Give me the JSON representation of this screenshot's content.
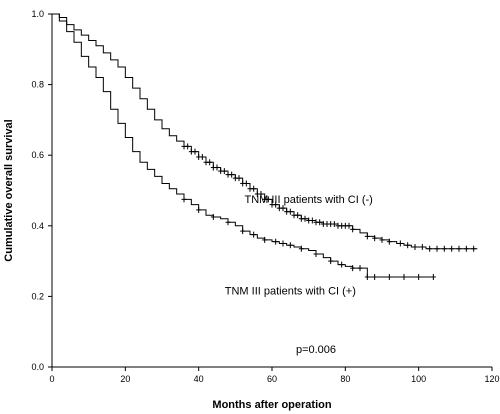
{
  "chart_data": {
    "type": "line",
    "xlabel": "Months after operation",
    "ylabel": "Cumulative overall survival",
    "xlim": [
      0,
      120
    ],
    "ylim": [
      0,
      1.0
    ],
    "xticks": [
      0,
      20,
      40,
      60,
      80,
      100,
      120
    ],
    "yticks": [
      0.0,
      0.2,
      0.4,
      0.6,
      0.8,
      1.0
    ],
    "ytick_labels": [
      "0.0",
      "0.2",
      "0.4",
      "0.6",
      "0.8",
      "1.0"
    ],
    "grid": false,
    "step": true,
    "series": [
      {
        "name": "TNM III patients with CI (-)",
        "x": [
          0,
          2,
          4,
          6,
          8,
          10,
          12,
          14,
          16,
          18,
          20,
          22,
          24,
          26,
          28,
          30,
          32,
          34,
          36,
          38,
          40,
          42,
          44,
          46,
          48,
          50,
          52,
          54,
          56,
          58,
          60,
          62,
          64,
          66,
          68,
          70,
          72,
          74,
          76,
          78,
          80,
          82,
          84,
          86,
          88,
          90,
          92,
          94,
          96,
          98,
          100,
          102,
          104,
          106,
          108,
          110,
          112,
          114,
          116
        ],
        "y": [
          1.0,
          0.99,
          0.97,
          0.955,
          0.94,
          0.925,
          0.91,
          0.89,
          0.87,
          0.85,
          0.82,
          0.79,
          0.76,
          0.73,
          0.7,
          0.675,
          0.655,
          0.64,
          0.625,
          0.61,
          0.595,
          0.58,
          0.565,
          0.555,
          0.545,
          0.535,
          0.52,
          0.505,
          0.49,
          0.475,
          0.46,
          0.45,
          0.44,
          0.43,
          0.42,
          0.415,
          0.41,
          0.405,
          0.405,
          0.4,
          0.4,
          0.39,
          0.38,
          0.37,
          0.365,
          0.36,
          0.355,
          0.35,
          0.345,
          0.34,
          0.34,
          0.335,
          0.335,
          0.335,
          0.335,
          0.335,
          0.335,
          0.335,
          0.335
        ],
        "censor_x": [
          36,
          37,
          38,
          39,
          40,
          41,
          42,
          43,
          44,
          45,
          46,
          47,
          48,
          49,
          50,
          51,
          52,
          53,
          54,
          55,
          56,
          57,
          58,
          59,
          60,
          61,
          62,
          63,
          64,
          65,
          66,
          67,
          68,
          69,
          70,
          71,
          72,
          73,
          74,
          75,
          76,
          77,
          78,
          79,
          80,
          81,
          82,
          86,
          88,
          90,
          92,
          95,
          97,
          99,
          101,
          103,
          105,
          107,
          109,
          111,
          113,
          115
        ]
      },
      {
        "name": "TNM III patients with CI (+)",
        "x": [
          0,
          2,
          4,
          6,
          8,
          10,
          12,
          14,
          16,
          18,
          20,
          22,
          24,
          26,
          28,
          30,
          32,
          34,
          36,
          38,
          40,
          42,
          44,
          46,
          48,
          50,
          52,
          54,
          56,
          58,
          60,
          62,
          64,
          66,
          68,
          70,
          72,
          74,
          76,
          78,
          80,
          82,
          84,
          86,
          88,
          90,
          92,
          94,
          96,
          98,
          100,
          102,
          104
        ],
        "y": [
          1.0,
          0.98,
          0.95,
          0.92,
          0.88,
          0.85,
          0.82,
          0.78,
          0.73,
          0.69,
          0.65,
          0.61,
          0.58,
          0.56,
          0.54,
          0.52,
          0.505,
          0.49,
          0.475,
          0.46,
          0.445,
          0.43,
          0.425,
          0.42,
          0.41,
          0.4,
          0.385,
          0.375,
          0.365,
          0.36,
          0.355,
          0.35,
          0.345,
          0.34,
          0.335,
          0.33,
          0.32,
          0.31,
          0.3,
          0.29,
          0.285,
          0.28,
          0.28,
          0.255,
          0.255,
          0.255,
          0.255,
          0.255,
          0.255,
          0.255,
          0.255,
          0.255,
          0.255
        ],
        "censor_x": [
          36,
          40,
          44,
          48,
          52,
          55,
          58,
          61,
          63,
          65,
          68,
          72,
          76,
          79,
          82,
          84,
          86,
          88,
          92,
          96,
          100,
          104
        ]
      }
    ],
    "annotations": [
      {
        "text": "TNM III patients with CI (-)",
        "x": 70,
        "y": 0.465
      },
      {
        "text": "TNM III patients with CI (+)",
        "x": 65,
        "y": 0.205
      },
      {
        "text": "p=0.006",
        "x": 72,
        "y": 0.04
      }
    ]
  }
}
